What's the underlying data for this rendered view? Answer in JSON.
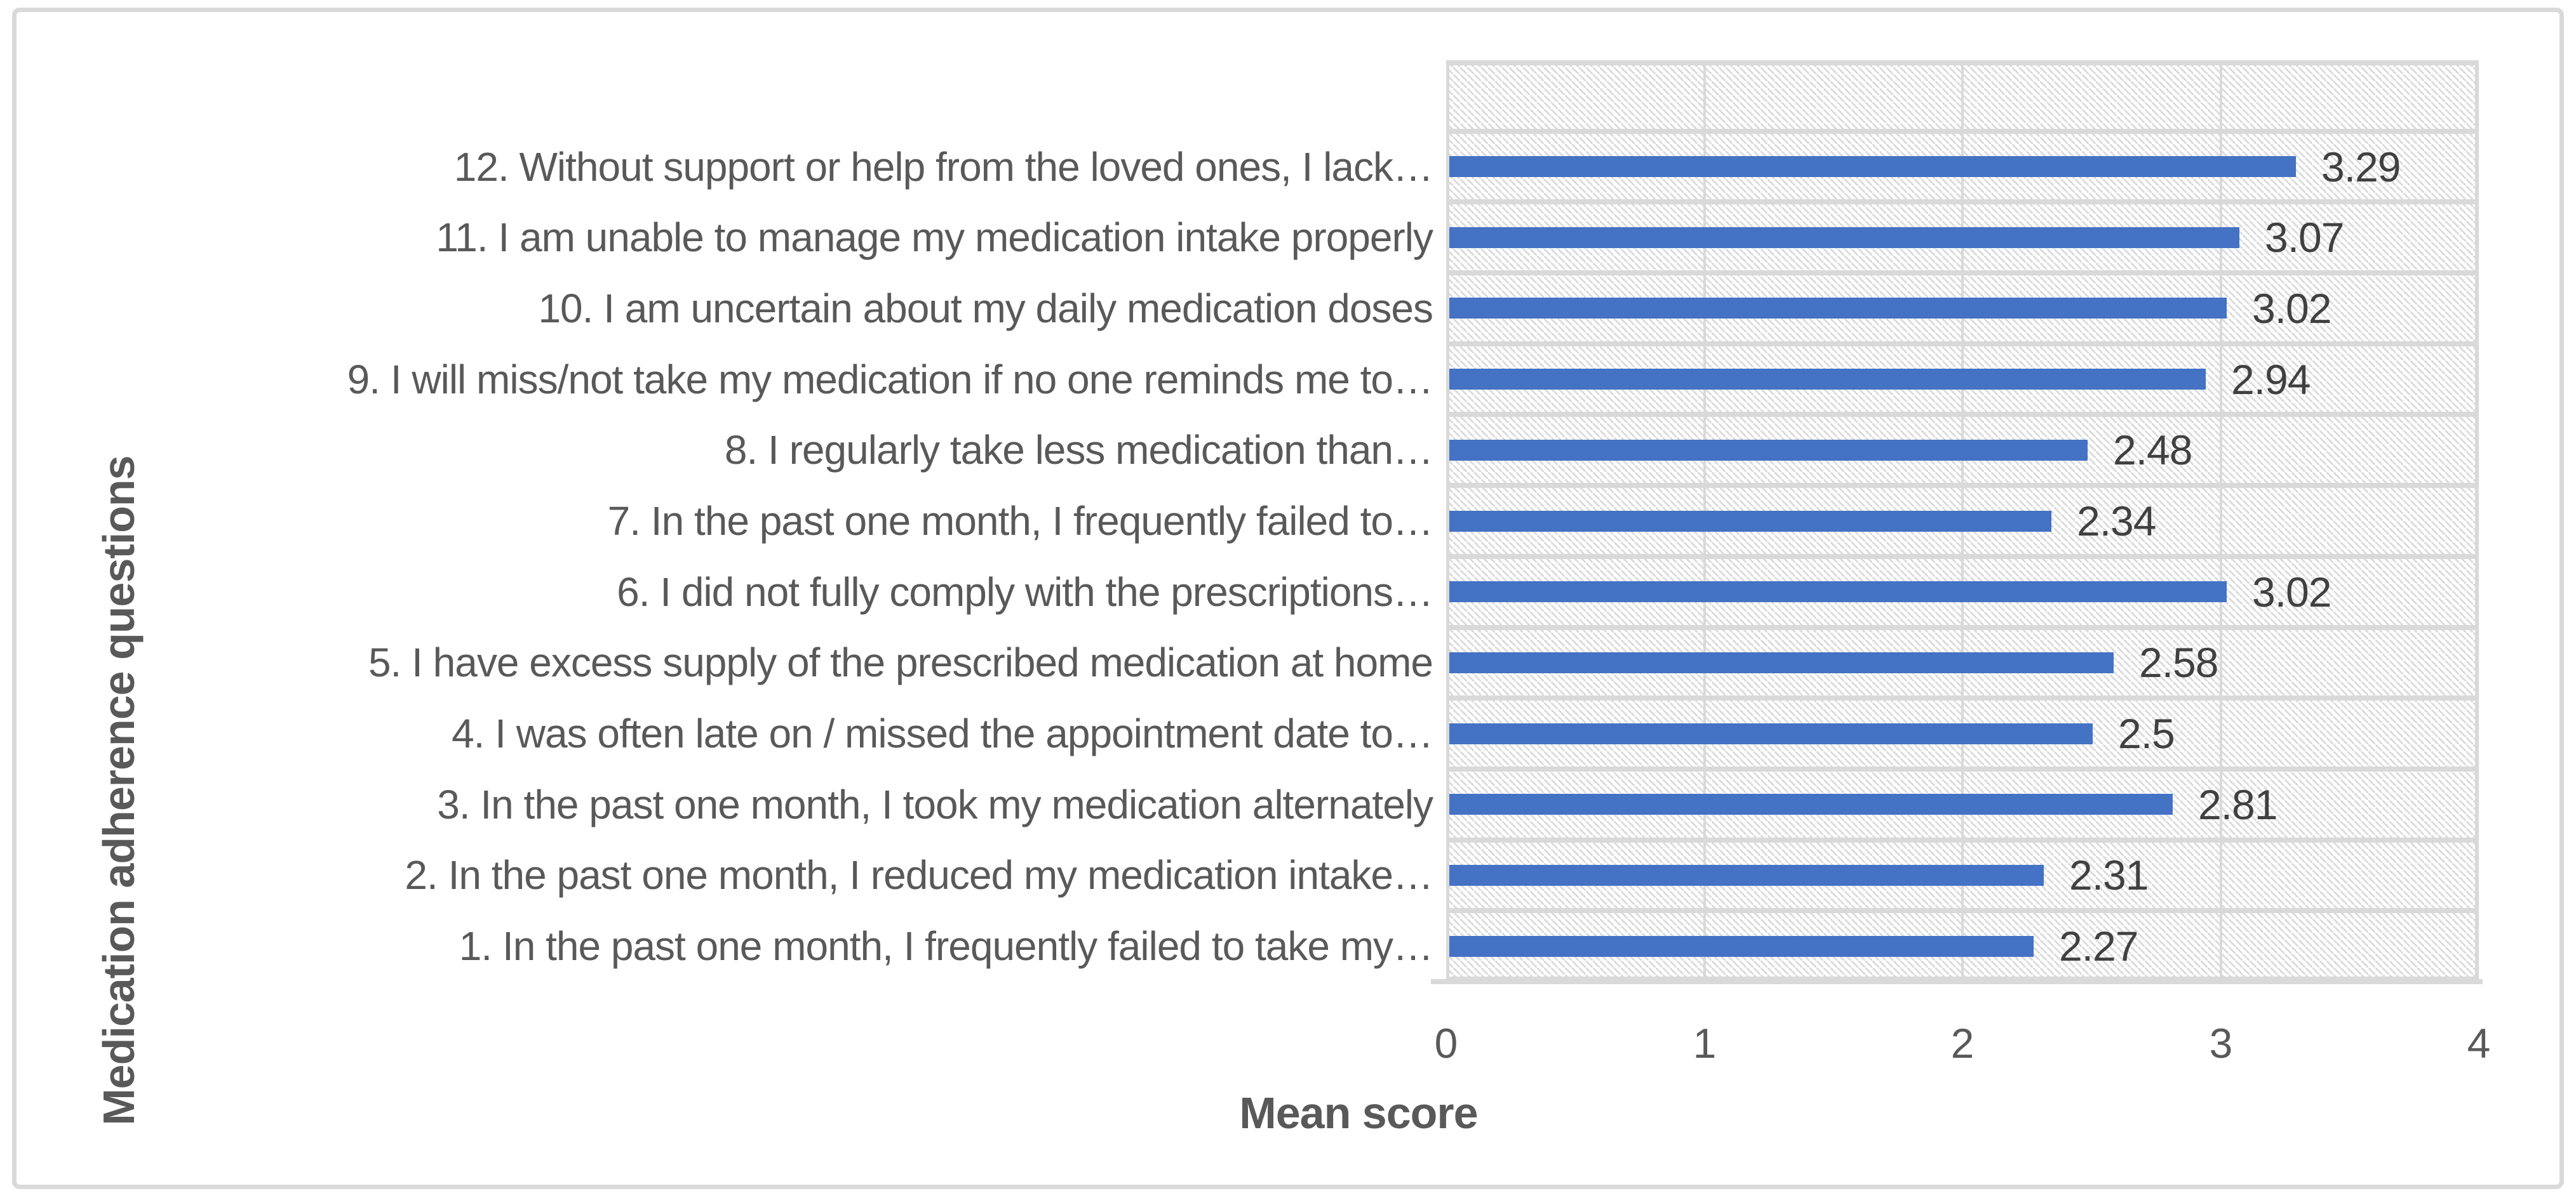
{
  "chart_data": {
    "type": "bar",
    "orientation": "horizontal",
    "row_order": "top-to-bottom",
    "categories": [
      "12. Without support or help from the loved ones, I lack…",
      "11. I am unable to manage my medication intake properly",
      "10. I am uncertain about my daily medication doses",
      "9. I will miss/not take my medication if no one reminds me to…",
      "8. I regularly take less medication than…",
      "7. In the past one month, I frequently failed to…",
      "6. I did not fully comply with the prescriptions…",
      "5. I have excess supply of the prescribed medication at home",
      "4. I was often late on / missed the appointment date to…",
      "3. In the past one month, I took my medication alternately",
      "2. In the past one month, I reduced my medication intake…",
      "1. In the past one month, I frequently failed to take my…"
    ],
    "values": [
      3.29,
      3.07,
      3.02,
      2.94,
      2.48,
      2.34,
      3.02,
      2.58,
      2.5,
      2.81,
      2.31,
      2.27
    ],
    "value_labels": [
      "3.29",
      "3.07",
      "3.02",
      "2.94",
      "2.48",
      "2.34",
      "3.02",
      "2.58",
      "2.5",
      "2.81",
      "2.31",
      "2.27"
    ],
    "xlabel": "Mean score",
    "ylabel": "Medication adherence questions",
    "xlim": [
      0,
      4
    ],
    "x_ticks": [
      "0",
      "1",
      "2",
      "3",
      "4"
    ],
    "grid": true,
    "legend": false,
    "bar_color": "#4472C4",
    "gridline_color": "#D9D9D9",
    "hatch_color": "#DCDCDC",
    "axis_text_color": "#595959",
    "value_label_color": "#404040",
    "plot_background": "light-downward-diagonal-hatch"
  }
}
